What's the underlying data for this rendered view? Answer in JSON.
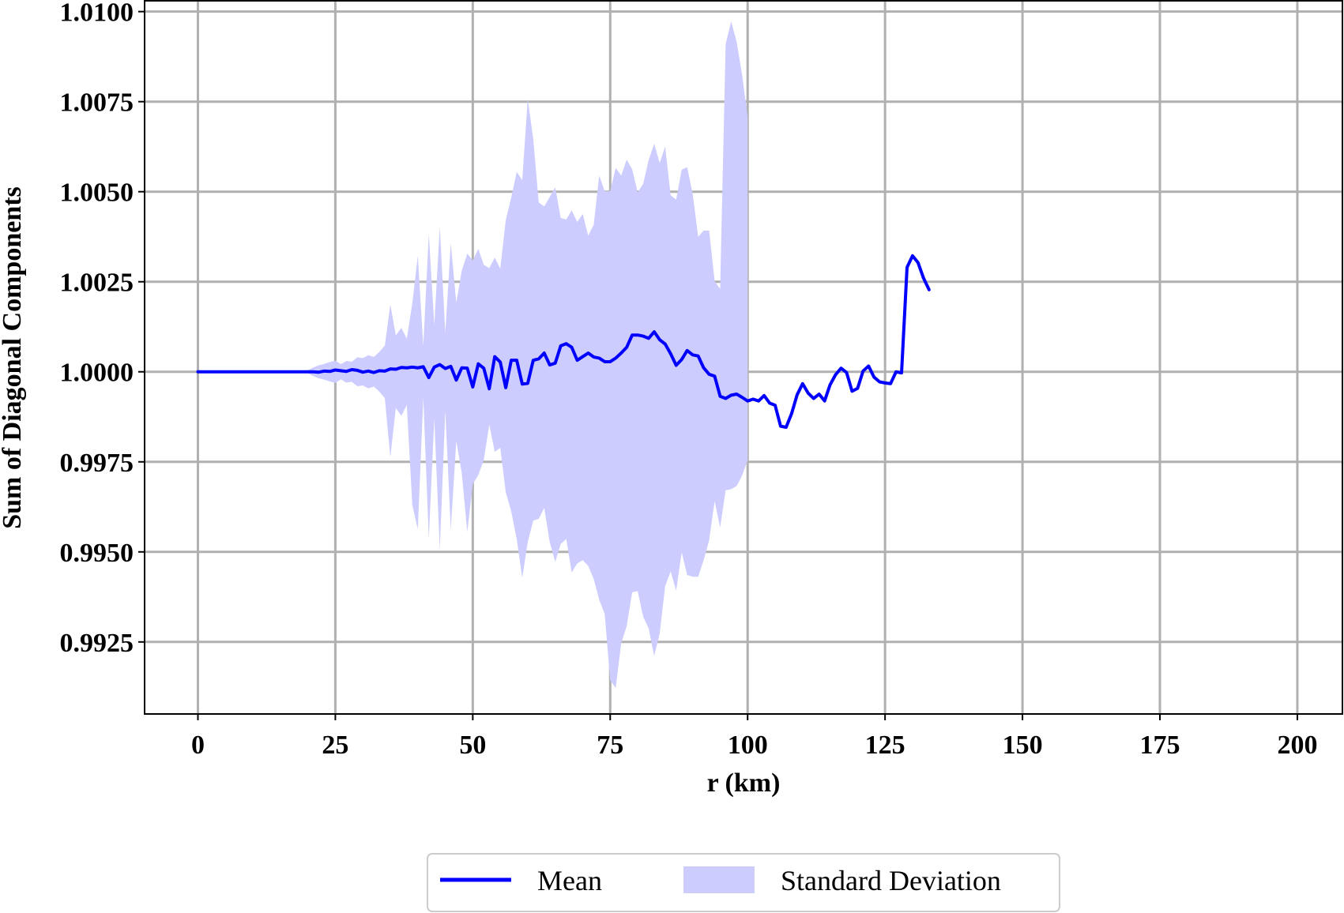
{
  "chart_data": {
    "type": "line",
    "title": "",
    "xlabel": "r (km)",
    "ylabel": "Sum of Diagonal Components",
    "xlim": [
      -9.7,
      208.2
    ],
    "ylim": [
      0.9905,
      1.0103
    ],
    "x_ticks": [
      0,
      25,
      50,
      75,
      100,
      125,
      150,
      175,
      200
    ],
    "x_tick_labels": [
      "0",
      "25",
      "50",
      "75",
      "100",
      "125",
      "150",
      "175",
      "200"
    ],
    "y_ticks": [
      0.9925,
      0.995,
      0.9975,
      1.0,
      1.0025,
      1.005,
      1.0075,
      1.01
    ],
    "y_tick_labels": [
      "0.9925",
      "0.9950",
      "0.9975",
      "1.0000",
      "1.0025",
      "1.0050",
      "1.0075",
      "1.0100"
    ],
    "grid": true,
    "legend_position": "bottom-center",
    "colors": {
      "mean": "#0000ff",
      "std": "#ccccff",
      "grid": "#b0b0b0"
    },
    "series": [
      {
        "name": "Mean",
        "kind": "line",
        "points": [
          [
            0,
            1.0
          ],
          [
            5,
            1.0
          ],
          [
            10,
            1.0
          ],
          [
            15,
            1.0
          ],
          [
            20,
            1.0
          ],
          [
            21,
            1.0
          ],
          [
            22,
            0.99999
          ],
          [
            23,
            1.00002
          ],
          [
            24,
            1.00001
          ],
          [
            25,
            1.00005
          ],
          [
            26,
            1.00003
          ],
          [
            27,
            1.00001
          ],
          [
            28,
            1.00006
          ],
          [
            29,
            1.00004
          ],
          [
            30,
            0.99999
          ],
          [
            31,
            1.00002
          ],
          [
            32,
            0.99998
          ],
          [
            33,
            1.00003
          ],
          [
            34,
            1.00002
          ],
          [
            35,
            1.00008
          ],
          [
            36,
            1.00007
          ],
          [
            37,
            1.00012
          ],
          [
            38,
            1.00011
          ],
          [
            39,
            1.00013
          ],
          [
            40,
            1.00011
          ],
          [
            41,
            1.00014
          ],
          [
            42,
            0.99984
          ],
          [
            43,
            1.00013
          ],
          [
            44,
            1.0002
          ],
          [
            45,
            1.00009
          ],
          [
            46,
            1.00015
          ],
          [
            47,
            0.99977
          ],
          [
            48,
            1.00011
          ],
          [
            49,
            1.0001
          ],
          [
            50,
            0.99958
          ],
          [
            51,
            1.00022
          ],
          [
            52,
            1.0001
          ],
          [
            53,
            0.99953
          ],
          [
            54,
            1.00042
          ],
          [
            55,
            1.00027
          ],
          [
            56,
            0.99956
          ],
          [
            57,
            1.00032
          ],
          [
            58,
            1.00032
          ],
          [
            59,
            0.99966
          ],
          [
            60,
            0.99968
          ],
          [
            61,
            1.00032
          ],
          [
            62,
            1.00036
          ],
          [
            63,
            1.00052
          ],
          [
            64,
            1.00019
          ],
          [
            65,
            1.00024
          ],
          [
            66,
            1.00072
          ],
          [
            67,
            1.00078
          ],
          [
            68,
            1.00068
          ],
          [
            69,
            1.00032
          ],
          [
            70,
            1.00042
          ],
          [
            71,
            1.00052
          ],
          [
            72,
            1.00041
          ],
          [
            73,
            1.00038
          ],
          [
            74,
            1.00028
          ],
          [
            75,
            1.00028
          ],
          [
            76,
            1.00038
          ],
          [
            77,
            1.00052
          ],
          [
            78,
            1.00068
          ],
          [
            79,
            1.00102
          ],
          [
            80,
            1.00102
          ],
          [
            81,
            1.00099
          ],
          [
            82,
            1.00093
          ],
          [
            83,
            1.00111
          ],
          [
            84,
            1.00089
          ],
          [
            85,
            1.00077
          ],
          [
            86,
            1.0005
          ],
          [
            87,
            1.00018
          ],
          [
            88,
            1.00034
          ],
          [
            89,
            1.00059
          ],
          [
            90,
            1.00047
          ],
          [
            91,
            1.00044
          ],
          [
            92,
            1.00011
          ],
          [
            93,
            0.99993
          ],
          [
            94,
            0.99988
          ],
          [
            95,
            0.99932
          ],
          [
            96,
            0.99926
          ],
          [
            97,
            0.99935
          ],
          [
            98,
            0.99938
          ],
          [
            99,
            0.99929
          ],
          [
            100,
            0.99919
          ],
          [
            101,
            0.99924
          ],
          [
            102,
            0.99919
          ],
          [
            103,
            0.99934
          ],
          [
            104,
            0.99913
          ],
          [
            105,
            0.99907
          ],
          [
            106,
            0.99849
          ],
          [
            107,
            0.99846
          ],
          [
            108,
            0.99884
          ],
          [
            109,
            0.99936
          ],
          [
            110,
            0.99967
          ],
          [
            111,
            0.99941
          ],
          [
            112,
            0.99926
          ],
          [
            113,
            0.99938
          ],
          [
            114,
            0.99919
          ],
          [
            115,
            0.99964
          ],
          [
            116,
            0.99992
          ],
          [
            117,
            1.0001
          ],
          [
            118,
            0.99998
          ],
          [
            119,
            0.99946
          ],
          [
            120,
            0.99954
          ],
          [
            121,
            1.00002
          ],
          [
            122,
            1.00016
          ],
          [
            123,
            0.99985
          ],
          [
            124,
            0.99972
          ],
          [
            125,
            0.99969
          ],
          [
            126,
            0.99967
          ],
          [
            127,
            1.0
          ],
          [
            128,
            0.99997
          ],
          [
            129,
            1.0029
          ],
          [
            130,
            1.00322
          ],
          [
            131,
            1.00303
          ],
          [
            132,
            1.0026
          ],
          [
            133,
            1.00228
          ]
        ]
      },
      {
        "name": "Standard Deviation",
        "kind": "band",
        "upper_points": [
          [
            0,
            1.0
          ],
          [
            5,
            1.0
          ],
          [
            10,
            1.00001
          ],
          [
            15,
            1.00002
          ],
          [
            20,
            1.00004
          ],
          [
            21,
            1.00012
          ],
          [
            22,
            1.00018
          ],
          [
            23,
            1.00022
          ],
          [
            24,
            1.00027
          ],
          [
            25,
            1.00031
          ],
          [
            26,
            1.00021
          ],
          [
            27,
            1.0003
          ],
          [
            28,
            1.00028
          ],
          [
            29,
            1.0004
          ],
          [
            30,
            1.00038
          ],
          [
            31,
            1.00046
          ],
          [
            32,
            1.00041
          ],
          [
            33,
            1.00055
          ],
          [
            34,
            1.00073
          ],
          [
            35,
            1.00187
          ],
          [
            36,
            1.00101
          ],
          [
            37,
            1.00122
          ],
          [
            38,
            1.00092
          ],
          [
            39,
            1.0019
          ],
          [
            40,
            1.00322
          ],
          [
            41,
            1.00072
          ],
          [
            42,
            1.00383
          ],
          [
            43,
            1.0013
          ],
          [
            44,
            1.00403
          ],
          [
            45,
            1.00108
          ],
          [
            46,
            1.00357
          ],
          [
            47,
            1.00192
          ],
          [
            48,
            1.00281
          ],
          [
            49,
            1.00328
          ],
          [
            50,
            1.00309
          ],
          [
            51,
            1.00341
          ],
          [
            52,
            1.00297
          ],
          [
            53,
            1.00288
          ],
          [
            54,
            1.00317
          ],
          [
            55,
            1.00286
          ],
          [
            56,
            1.00421
          ],
          [
            57,
            1.00484
          ],
          [
            58,
            1.00555
          ],
          [
            59,
            1.00532
          ],
          [
            60,
            1.00758
          ],
          [
            61,
            1.00646
          ],
          [
            62,
            1.0047
          ],
          [
            63,
            1.00459
          ],
          [
            64,
            1.00485
          ],
          [
            65,
            1.00512
          ],
          [
            66,
            1.00427
          ],
          [
            67,
            1.00423
          ],
          [
            68,
            1.00448
          ],
          [
            69,
            1.00416
          ],
          [
            70,
            1.00438
          ],
          [
            71,
            1.00378
          ],
          [
            72,
            1.00408
          ],
          [
            73,
            1.00545
          ],
          [
            74,
            1.00501
          ],
          [
            75,
            1.00501
          ],
          [
            76,
            1.00566
          ],
          [
            77,
            1.00545
          ],
          [
            78,
            1.00589
          ],
          [
            79,
            1.00562
          ],
          [
            80,
            1.00498
          ],
          [
            81,
            1.00522
          ],
          [
            82,
            1.00588
          ],
          [
            83,
            1.00633
          ],
          [
            84,
            1.0058
          ],
          [
            85,
            1.00625
          ],
          [
            86,
            1.0049
          ],
          [
            87,
            1.00478
          ],
          [
            88,
            1.00561
          ],
          [
            89,
            1.00568
          ],
          [
            90,
            1.00495
          ],
          [
            91,
            1.00375
          ],
          [
            92,
            1.00392
          ],
          [
            93,
            1.00392
          ],
          [
            94,
            1.00252
          ],
          [
            95,
            1.0023
          ],
          [
            96,
            1.0091
          ],
          [
            97,
            1.00973
          ],
          [
            98,
            1.00916
          ],
          [
            99,
            1.00824
          ],
          [
            100,
            1.00708
          ]
        ],
        "lower_points": [
          [
            0,
            1.0
          ],
          [
            5,
            1.0
          ],
          [
            10,
            0.99999
          ],
          [
            15,
            0.99998
          ],
          [
            20,
            0.99996
          ],
          [
            21,
            0.99988
          ],
          [
            22,
            0.99982
          ],
          [
            23,
            0.99978
          ],
          [
            24,
            0.99973
          ],
          [
            25,
            0.99969
          ],
          [
            26,
            0.99979
          ],
          [
            27,
            0.9997
          ],
          [
            28,
            0.99972
          ],
          [
            29,
            0.9996
          ],
          [
            30,
            0.99962
          ],
          [
            31,
            0.99954
          ],
          [
            32,
            0.99959
          ],
          [
            33,
            0.99945
          ],
          [
            34,
            0.99927
          ],
          [
            35,
            0.99763
          ],
          [
            36,
            0.99899
          ],
          [
            37,
            0.99878
          ],
          [
            38,
            0.99908
          ],
          [
            39,
            0.9963
          ],
          [
            40,
            0.99563
          ],
          [
            41,
            0.99928
          ],
          [
            42,
            0.99537
          ],
          [
            43,
            0.9987
          ],
          [
            44,
            0.99507
          ],
          [
            45,
            0.99892
          ],
          [
            46,
            0.99561
          ],
          [
            47,
            0.99808
          ],
          [
            48,
            0.99719
          ],
          [
            49,
            0.99555
          ],
          [
            50,
            0.99689
          ],
          [
            51,
            0.99713
          ],
          [
            52,
            0.99755
          ],
          [
            53,
            0.99853
          ],
          [
            54,
            0.99778
          ],
          [
            55,
            0.99789
          ],
          [
            56,
            0.99666
          ],
          [
            57,
            0.99612
          ],
          [
            58,
            0.99535
          ],
          [
            59,
            0.99428
          ],
          [
            60,
            0.99527
          ],
          [
            61,
            0.99587
          ],
          [
            62,
            0.99592
          ],
          [
            63,
            0.99622
          ],
          [
            64,
            0.99527
          ],
          [
            65,
            0.99472
          ],
          [
            66,
            0.99522
          ],
          [
            67,
            0.99536
          ],
          [
            68,
            0.99443
          ],
          [
            69,
            0.99468
          ],
          [
            70,
            0.99477
          ],
          [
            71,
            0.99461
          ],
          [
            72,
            0.99425
          ],
          [
            73,
            0.99367
          ],
          [
            74,
            0.99328
          ],
          [
            75,
            0.99144
          ],
          [
            76,
            0.99122
          ],
          [
            77,
            0.99246
          ],
          [
            78,
            0.99294
          ],
          [
            79,
            0.99388
          ],
          [
            80,
            0.99391
          ],
          [
            81,
            0.9932
          ],
          [
            82,
            0.99287
          ],
          [
            83,
            0.99211
          ],
          [
            84,
            0.99273
          ],
          [
            85,
            0.99405
          ],
          [
            86,
            0.99446
          ],
          [
            87,
            0.99392
          ],
          [
            88,
            0.99499
          ],
          [
            89,
            0.99436
          ],
          [
            90,
            0.99431
          ],
          [
            91,
            0.99431
          ],
          [
            92,
            0.99477
          ],
          [
            93,
            0.99532
          ],
          [
            94,
            0.99641
          ],
          [
            95,
            0.99568
          ],
          [
            96,
            0.99671
          ],
          [
            97,
            0.99674
          ],
          [
            98,
            0.99683
          ],
          [
            99,
            0.99712
          ],
          [
            100,
            0.99755
          ]
        ]
      }
    ]
  },
  "legend": {
    "items": [
      {
        "label": "Mean"
      },
      {
        "label": "Standard Deviation"
      }
    ]
  }
}
